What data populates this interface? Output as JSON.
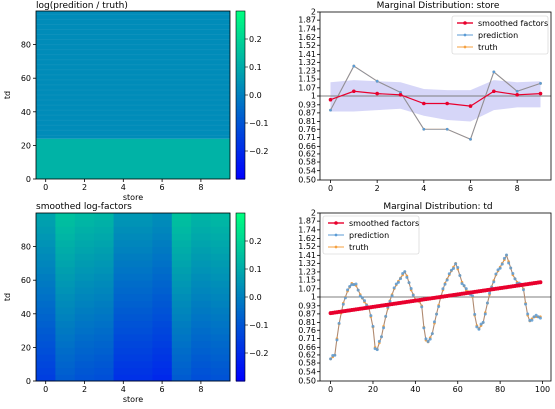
{
  "chart_data": [
    {
      "type": "heatmap",
      "title": "log(predition / truth)",
      "xlabel": "store",
      "ylabel": "td",
      "x_ticks": [
        "0",
        "2",
        "4",
        "6",
        "8"
      ],
      "y_ticks": [
        "0",
        "20",
        "40",
        "60",
        "80"
      ],
      "xlim": [
        -0.5,
        9.5
      ],
      "ylim": [
        0,
        100
      ],
      "colorbar_ticks": [
        "0.2",
        "0.1",
        "0.0",
        "-0.1",
        "-0.2"
      ],
      "colorbar_range": [
        -0.3,
        0.3
      ],
      "row_blocks": [
        {
          "from": 0,
          "to": 24,
          "value": 0.12
        },
        {
          "from": 24,
          "to": 100,
          "value": 0.03
        }
      ]
    },
    {
      "type": "line",
      "title": "Marginal Distribution: store",
      "log_scale": true,
      "x_ticks": [
        "0",
        "2",
        "4",
        "6",
        "8"
      ],
      "y_ticks": [
        "0.50",
        "0.54",
        "0.58",
        "0.62",
        "0.66",
        "0.71",
        "0.76",
        "0.81",
        "0.87",
        "0.93",
        "1",
        "1.07",
        "1.15",
        "1.23",
        "1.32",
        "1.41",
        "1.52",
        "1.62",
        "1.74",
        "1.87",
        "2"
      ],
      "ylim": [
        0.5,
        2
      ],
      "xlim": [
        -0.45,
        9.45
      ],
      "legend_position": "top-right",
      "x": [
        0,
        1,
        2,
        3,
        4,
        5,
        6,
        7,
        8,
        9
      ],
      "series": [
        {
          "name": "smoothed factors",
          "color": "#e8002d",
          "values": [
            0.97,
            1.04,
            1.02,
            1.01,
            0.94,
            0.94,
            0.92,
            1.04,
            1.01,
            1.02
          ]
        },
        {
          "name": "prediction",
          "color": "#5b9bd5",
          "values": [
            0.89,
            1.28,
            1.13,
            1.03,
            0.76,
            0.76,
            0.7,
            1.22,
            1.04,
            1.11
          ]
        },
        {
          "name": "truth",
          "color": "#f5a142",
          "values": [
            0.89,
            1.28,
            1.13,
            1.03,
            0.76,
            0.76,
            0.7,
            1.22,
            1.04,
            1.11
          ]
        }
      ],
      "band": {
        "lower": [
          0.88,
          0.88,
          0.89,
          0.9,
          0.85,
          0.82,
          0.81,
          0.89,
          0.91,
          0.91
        ],
        "upper": [
          1.12,
          1.14,
          1.13,
          1.12,
          1.06,
          1.05,
          1.05,
          1.14,
          1.12,
          1.13
        ]
      }
    },
    {
      "type": "heatmap",
      "title": "smoothed log-factors",
      "xlabel": "store",
      "ylabel": "td",
      "x_ticks": [
        "0",
        "2",
        "4",
        "6",
        "8"
      ],
      "y_ticks": [
        "0",
        "20",
        "40",
        "60",
        "80"
      ],
      "xlim": [
        -0.5,
        9.5
      ],
      "ylim": [
        0,
        100
      ],
      "colorbar_ticks": [
        "0.2",
        "0.1",
        "0.0",
        "-0.1",
        "-0.2"
      ],
      "colorbar_range": [
        -0.3,
        0.3
      ],
      "column_offsets": [
        -0.03,
        0.04,
        0.02,
        0.01,
        -0.06,
        -0.06,
        -0.08,
        0.04,
        0.01,
        0.02
      ],
      "td_range": [
        -0.13,
        0.12
      ]
    },
    {
      "type": "line",
      "title": "Marginal Distribution: td",
      "log_scale": true,
      "x_ticks": [
        "0",
        "20",
        "40",
        "60",
        "80",
        "100"
      ],
      "y_ticks": [
        "0.50",
        "0.54",
        "0.58",
        "0.62",
        "0.66",
        "0.71",
        "0.76",
        "0.81",
        "0.87",
        "0.93",
        "1",
        "1.07",
        "1.15",
        "1.23",
        "1.32",
        "1.41",
        "1.52",
        "1.62",
        "1.74",
        "1.87",
        "2"
      ],
      "ylim": [
        0.5,
        2
      ],
      "xlim": [
        -5,
        104
      ],
      "legend_position": "top-left",
      "x_count": 100,
      "smoothed_range": [
        0.875,
        1.13
      ],
      "wave_keypoints": [
        [
          0,
          0.6
        ],
        [
          2,
          0.62
        ],
        [
          4,
          0.8
        ],
        [
          6,
          0.95
        ],
        [
          8,
          1.05
        ],
        [
          10,
          1.12
        ],
        [
          12,
          1.1
        ],
        [
          14,
          1.02
        ],
        [
          16,
          0.96
        ],
        [
          18,
          0.92
        ],
        [
          20,
          0.78
        ],
        [
          21,
          0.66
        ],
        [
          22,
          0.65
        ],
        [
          24,
          0.72
        ],
        [
          26,
          0.85
        ],
        [
          28,
          0.97
        ],
        [
          30,
          1.07
        ],
        [
          32,
          1.14
        ],
        [
          34,
          1.2
        ],
        [
          35,
          1.23
        ],
        [
          36,
          1.19
        ],
        [
          38,
          1.06
        ],
        [
          40,
          0.98
        ],
        [
          42,
          0.96
        ],
        [
          43,
          0.93
        ],
        [
          44,
          0.78
        ],
        [
          45,
          0.7
        ],
        [
          46,
          0.69
        ],
        [
          48,
          0.74
        ],
        [
          50,
          0.87
        ],
        [
          52,
          1.0
        ],
        [
          54,
          1.12
        ],
        [
          56,
          1.2
        ],
        [
          58,
          1.28
        ],
        [
          59,
          1.32
        ],
        [
          60,
          1.26
        ],
        [
          62,
          1.13
        ],
        [
          64,
          1.06
        ],
        [
          66,
          1.03
        ],
        [
          67,
          1.0
        ],
        [
          68,
          0.86
        ],
        [
          69,
          0.79
        ],
        [
          70,
          0.77
        ],
        [
          72,
          0.81
        ],
        [
          74,
          0.95
        ],
        [
          76,
          1.09
        ],
        [
          78,
          1.2
        ],
        [
          80,
          1.28
        ],
        [
          82,
          1.36
        ],
        [
          83,
          1.41
        ],
        [
          84,
          1.34
        ],
        [
          86,
          1.2
        ],
        [
          88,
          1.13
        ],
        [
          90,
          1.1
        ],
        [
          91,
          1.07
        ],
        [
          92,
          0.95
        ],
        [
          93,
          0.86
        ],
        [
          94,
          0.82
        ],
        [
          96,
          0.85
        ]
      ],
      "series": [
        {
          "name": "smoothed factors",
          "color": "#e8002d"
        },
        {
          "name": "prediction",
          "color": "#5b9bd5"
        },
        {
          "name": "truth",
          "color": "#f5a142"
        }
      ]
    }
  ]
}
